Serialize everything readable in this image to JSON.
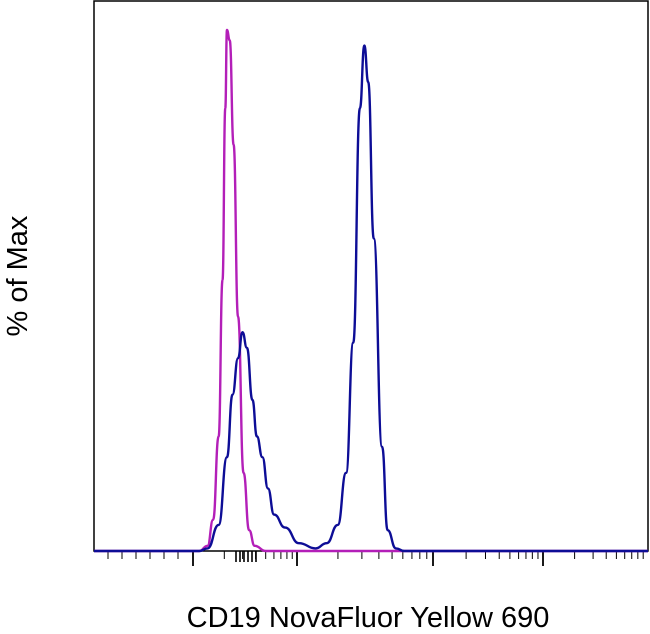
{
  "chart_data": {
    "type": "line",
    "title": "",
    "xlabel": "CD19 NovaFluor Yellow 690",
    "ylabel": "% of Max",
    "xscale": "log",
    "x_tick_labels_shown": false,
    "y_tick_labels_shown": false,
    "xlim": [
      0,
      1
    ],
    "ylim": [
      0,
      100
    ],
    "grid": false,
    "legend": "none",
    "series": [
      {
        "color": "#b31fb8",
        "points": [
          [
            0.0,
            0
          ],
          [
            0.19,
            0
          ],
          [
            0.205,
            1
          ],
          [
            0.215,
            6
          ],
          [
            0.225,
            22
          ],
          [
            0.232,
            52
          ],
          [
            0.237,
            85
          ],
          [
            0.24,
            100
          ],
          [
            0.245,
            98
          ],
          [
            0.252,
            78
          ],
          [
            0.26,
            45
          ],
          [
            0.27,
            15
          ],
          [
            0.28,
            4
          ],
          [
            0.29,
            1
          ],
          [
            0.31,
            0
          ],
          [
            1.0,
            0
          ]
        ]
      },
      {
        "color": "#0d0d96",
        "points": [
          [
            0.0,
            0
          ],
          [
            0.19,
            0
          ],
          [
            0.205,
            0.5
          ],
          [
            0.225,
            5
          ],
          [
            0.24,
            18
          ],
          [
            0.25,
            30
          ],
          [
            0.26,
            37
          ],
          [
            0.268,
            42
          ],
          [
            0.276,
            39
          ],
          [
            0.286,
            29
          ],
          [
            0.294,
            22
          ],
          [
            0.304,
            18
          ],
          [
            0.314,
            12
          ],
          [
            0.325,
            7
          ],
          [
            0.345,
            4.5
          ],
          [
            0.37,
            1.5
          ],
          [
            0.4,
            0.5
          ],
          [
            0.42,
            1.5
          ],
          [
            0.44,
            5
          ],
          [
            0.455,
            15
          ],
          [
            0.468,
            40
          ],
          [
            0.48,
            85
          ],
          [
            0.488,
            97
          ],
          [
            0.495,
            90
          ],
          [
            0.505,
            60
          ],
          [
            0.52,
            20
          ],
          [
            0.53,
            4
          ],
          [
            0.545,
            0.5
          ],
          [
            0.56,
            0
          ],
          [
            1.0,
            0
          ]
        ]
      }
    ]
  },
  "colors": {
    "isotype": "#b31fb8",
    "cd19": "#0d0d96",
    "axis": "#000000"
  }
}
